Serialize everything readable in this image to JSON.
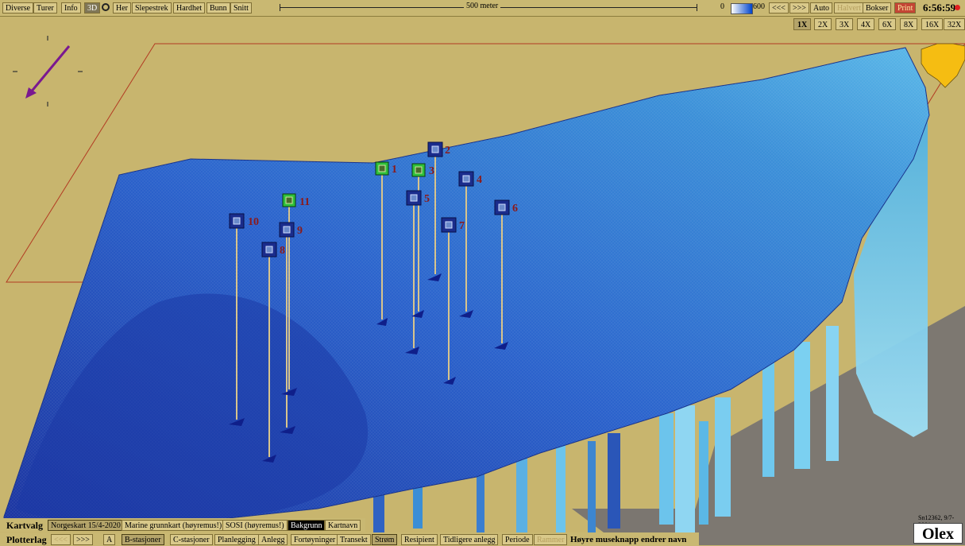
{
  "toolbar": {
    "items": [
      "Diverse",
      "Turer",
      "Info",
      "3D",
      "Her",
      "Slepestrek",
      "Hardhet",
      "Bunn",
      "Snitt"
    ],
    "scale_label": "500 meter",
    "depth_min": "0",
    "depth_max": "600",
    "nav_back": "<<<",
    "nav_fwd": ">>>",
    "auto": "Auto",
    "halfsize": "Halvert",
    "boxes": "Bokser",
    "print": "Print",
    "clock": "6:56:59"
  },
  "zoom_levels": [
    "1X",
    "2X",
    "3X",
    "4X",
    "6X",
    "8X",
    "16X",
    "32X"
  ],
  "stations": [
    "1",
    "2",
    "3",
    "4",
    "5",
    "6",
    "7",
    "8",
    "9",
    "10",
    "11"
  ],
  "kartvalg": {
    "label": "Kartvalg",
    "items": [
      "Norgeskart 15/4-2020",
      "Marine grunnkart (høyremus!)",
      "SOSI (høyremus!)",
      "Bakgrunn",
      "Kartnavn"
    ]
  },
  "plotterlag": {
    "label": "Plotterlag",
    "items": [
      "<<<",
      ">>>",
      "A",
      "B-stasjoner",
      "C-stasjoner",
      "Planlegging",
      "Anlegg",
      "Fortøyninger",
      "Transekt",
      "Strøm",
      "Resipient",
      "Tidligere anlegg",
      "Periode",
      "Rammer"
    ],
    "hint": "Høyre museknapp endrer navn"
  },
  "brand": {
    "id": "Sn12362, 9/7-2001",
    "name": "Olex"
  },
  "colors": {
    "background": "#c8b56e",
    "terrain_deep": "#1f3ea8",
    "terrain_shallow": "#4fa5df",
    "station_b": "#1a2c8c",
    "station_c": "#2fbf3a",
    "label": "#8b1a1a"
  }
}
